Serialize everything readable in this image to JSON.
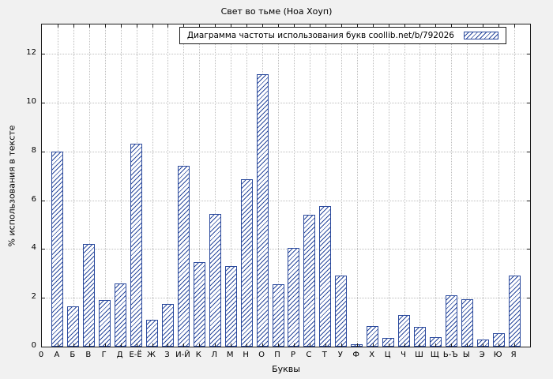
{
  "title": "Свет во тьме (Ноа Хоуп)",
  "legend": {
    "label": "Диаграмма частоты использования букв coollib.net/b/792026"
  },
  "axes": {
    "xlabel": "Буквы",
    "ylabel": "% использования в тексте",
    "origin_label": "0"
  },
  "colors": {
    "bar": "#2b4a9d",
    "plot_bg": "#ffffff",
    "figure_bg": "#f1f1f1",
    "grid": "#bdbdbd",
    "border": "#1a1a1a"
  },
  "chart_data": {
    "type": "bar",
    "title": "Свет во тьме (Ноа Хоуп)",
    "legend_label": "Диаграмма частоты использования букв coollib.net/b/792026",
    "xlabel": "Буквы",
    "ylabel": "% использования в тексте",
    "categories": [
      "А",
      "Б",
      "В",
      "Г",
      "Д",
      "Е-Ё",
      "Ж",
      "З",
      "И-Й",
      "К",
      "Л",
      "М",
      "Н",
      "О",
      "П",
      "Р",
      "С",
      "Т",
      "У",
      "Ф",
      "Х",
      "Ц",
      "Ч",
      "Ш",
      "Щ",
      "Ь-Ъ",
      "Ы",
      "Э",
      "Ю",
      "Я"
    ],
    "values": [
      8.0,
      1.65,
      4.2,
      1.9,
      2.6,
      8.3,
      1.1,
      1.75,
      7.4,
      3.45,
      5.45,
      3.3,
      6.85,
      11.15,
      2.55,
      4.05,
      5.4,
      5.75,
      2.9,
      0.1,
      0.85,
      0.35,
      1.3,
      0.8,
      0.4,
      2.1,
      1.95,
      0.3,
      0.55,
      2.9
    ],
    "yticks": [
      0,
      2,
      4,
      6,
      8,
      10,
      12
    ],
    "ylim": [
      0,
      13.2
    ],
    "grid": true,
    "legend_position": "top-right",
    "fill_style": "diagonal-hatch"
  }
}
